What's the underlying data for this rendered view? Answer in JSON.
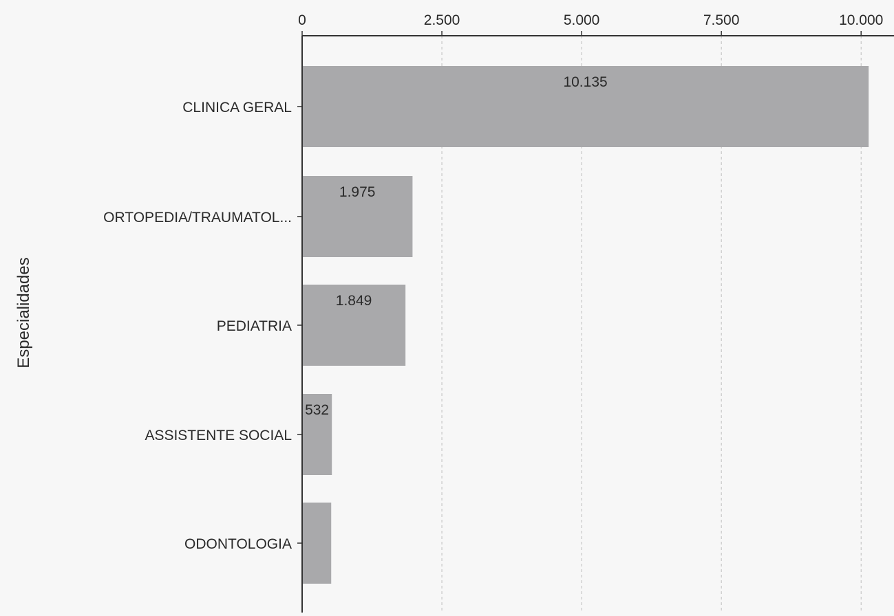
{
  "chart_data": {
    "type": "bar",
    "orientation": "horizontal",
    "ylabel": "Especialidades",
    "xlabel": "",
    "categories": [
      "CLINICA GERAL",
      "ORTOPEDIA/TRAUMATOL...",
      "PEDIATRIA",
      "ASSISTENTE SOCIAL",
      "ODONTOLOGIA"
    ],
    "values": [
      10135,
      1975,
      1849,
      532,
      520
    ],
    "data_labels": [
      "10.135",
      "1.975",
      "1.849",
      "532",
      ""
    ],
    "xlim": [
      0,
      10500
    ],
    "xticks": [
      0,
      2500,
      5000,
      7500,
      10000
    ],
    "xtick_labels": [
      "0",
      "2.500",
      "5.000",
      "7.500",
      "10.000"
    ],
    "x_axis_position": "top",
    "grid": "vertical dashed",
    "legend": "none",
    "colors": {
      "bar": "#a9a9ab",
      "axis": "#333333",
      "grid": "#bdbdbd",
      "text": "#2a2a2a",
      "background": "#f7f7f7"
    }
  }
}
